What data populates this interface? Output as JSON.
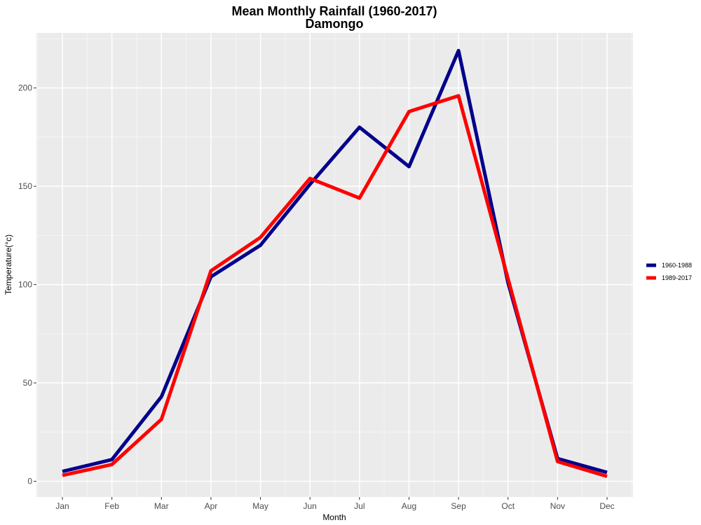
{
  "chart_data": {
    "type": "line",
    "title": "Mean Monthly Rainfall (1960-2017)",
    "subtitle": "Damongo",
    "xlabel": "Month",
    "ylabel": "Temperature(°c)",
    "categories": [
      "Jan",
      "Feb",
      "Mar",
      "Apr",
      "May",
      "Jun",
      "Jul",
      "Aug",
      "Sep",
      "Oct",
      "Nov",
      "Dec"
    ],
    "ylim": [
      -8,
      228
    ],
    "yticks": [
      0,
      50,
      100,
      150,
      200
    ],
    "grid": true,
    "legend_position": "right",
    "series": [
      {
        "name": "1960-1988",
        "color": "#00008b",
        "values": [
          5,
          11,
          43,
          104,
          120,
          151,
          180,
          160,
          219,
          101,
          11.5,
          4.5
        ]
      },
      {
        "name": "1989-2017",
        "color": "#ff0000",
        "values": [
          3,
          8.5,
          31.5,
          107,
          124,
          154,
          144,
          188,
          196,
          103,
          10,
          2.5
        ]
      }
    ]
  }
}
